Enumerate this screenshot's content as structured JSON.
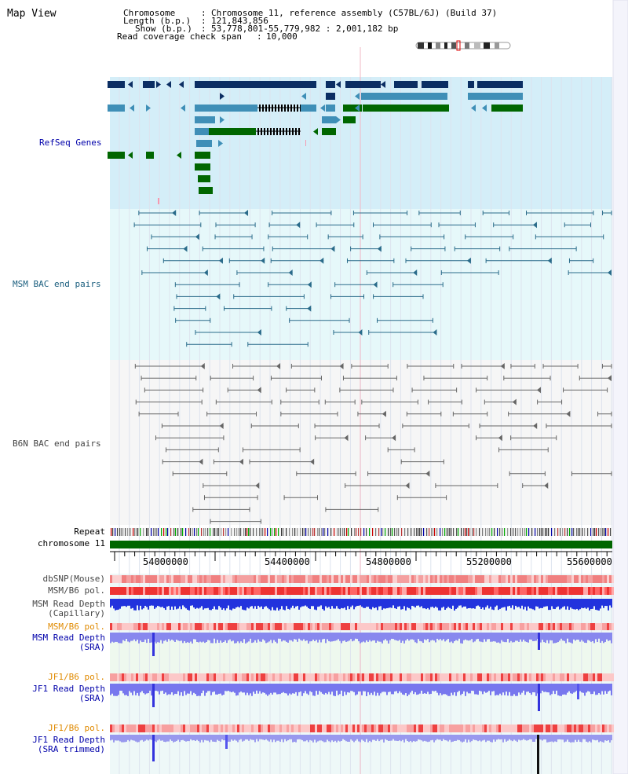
{
  "page": {
    "title": "Map View"
  },
  "info": {
    "chromosome_key": "Chromosome",
    "chromosome_value": "Chromosome 11, reference assembly (C57BL/6J) (Build 37)",
    "length_key": "Length (b.p.)",
    "length_value": "121,843,856",
    "show_key": "Show (b.p.)",
    "show_value": "53,778,801-55,779,982 : 2,001,182 bp",
    "coverage_key": "Read coverage check span",
    "coverage_value": "10,000"
  },
  "tracks": {
    "refseq": "RefSeq Genes",
    "msm_bac": "MSM BAC end pairs",
    "b6n_bac": "B6N BAC end pairs",
    "repeat": "Repeat",
    "chromosome": "chromosome 11",
    "dbsnp": "dbSNP(Mouse)",
    "msm_b6_pol_1": "MSM/B6 pol.",
    "msm_depth_cap_1": "MSM Read Depth",
    "msm_depth_cap_2": "(Capillary)",
    "msm_b6_pol_2": "MSM/B6 pol.",
    "msm_depth_sra_1": "MSM Read Depth",
    "msm_depth_sra_2": "(SRA)",
    "jf1_b6_pol_1": "JF1/B6 pol.",
    "jf1_depth_sra_1": "JF1 Read Depth",
    "jf1_depth_sra_2": "(SRA)",
    "jf1_b6_pol_2": "JF1/B6 pol.",
    "jf1_depth_trim_1": "JF1 Read Depth",
    "jf1_depth_trim_2": "(SRA trimmed)"
  },
  "axis": {
    "ticks": [
      "54000000",
      "54400000",
      "54800000",
      "55200000",
      "55600000"
    ]
  },
  "colors": {
    "refseq_bg": "#d4eef8",
    "bac_bg": "#e6f8fa",
    "gene_dark": "#0b2e63",
    "gene_mid": "#3f8fb7",
    "gene_green": "#006600",
    "msm_line": "#2a6b8a",
    "b6n_line": "#666666",
    "chrom_bar": "#006600",
    "label_blue": "#0000aa",
    "label_msm": "#1a5e7e",
    "label_gray": "#444444",
    "label_orange": "#e08a00"
  }
}
